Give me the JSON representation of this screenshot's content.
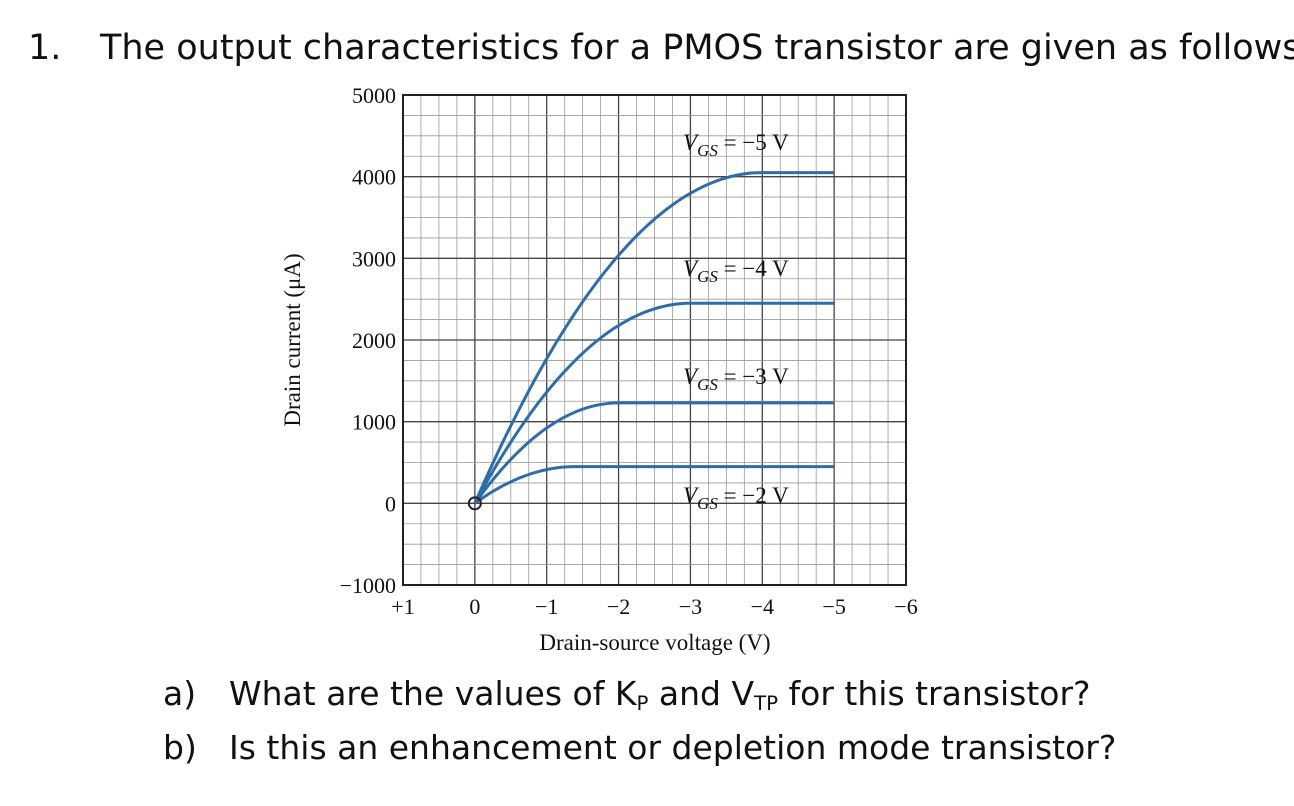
{
  "question": {
    "number": "1.",
    "text": "The output characteristics for a PMOS transistor are given as follows:"
  },
  "chart_data": {
    "type": "line",
    "xlabel": "Drain-source voltage (V)",
    "ylabel": "Drain current (μA)",
    "xlim": [
      1,
      -6
    ],
    "ylim": [
      -1000,
      5000
    ],
    "x_ticks": [
      "+1",
      "0",
      "−1",
      "−2",
      "−3",
      "−4",
      "−5",
      "−6"
    ],
    "y_ticks": [
      "5000",
      "4000",
      "3000",
      "2000",
      "1000",
      "0",
      "−1000"
    ],
    "grid": true,
    "series": [
      {
        "name": "VGS = −5 V",
        "label_var": "V",
        "label_sub": "GS",
        "label_rest": " = −5 V",
        "vov": 4,
        "isat": 4050
      },
      {
        "name": "VGS = −4 V",
        "label_var": "V",
        "label_sub": "GS",
        "label_rest": " = −4 V",
        "vov": 3,
        "isat": 2450
      },
      {
        "name": "VGS = −3 V",
        "label_var": "V",
        "label_sub": "GS",
        "label_rest": " = −3 V",
        "vov": 2,
        "isat": 1230
      },
      {
        "name": "VGS = −2 V",
        "label_var": "V",
        "label_sub": "GS",
        "label_rest": " = −2 V",
        "vov": 1.4,
        "isat": 450
      }
    ],
    "x_max_curve": -5,
    "color": "#2e6ea8"
  },
  "parts": [
    {
      "label": "a)",
      "pre": "What are the values of K",
      "sub1": "P",
      "mid": " and V",
      "sub2": "TP",
      "post": " for this transistor?"
    },
    {
      "label": "b)",
      "text": "Is this an enhancement or depletion mode transistor?"
    }
  ]
}
